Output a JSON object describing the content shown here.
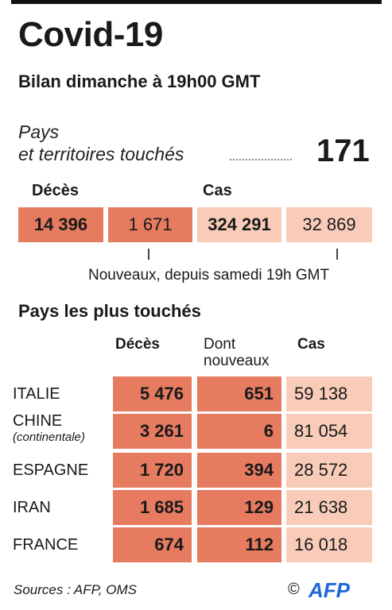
{
  "title": "Covid-19",
  "subtitle": "Bilan dimanche à 19h00 GMT",
  "countries_affected": {
    "label_line1": "Pays",
    "label_line2": "et territoires touchés",
    "value": "171"
  },
  "summary": {
    "deaths_label": "Décès",
    "cases_label": "Cas",
    "deaths_total": "14 396",
    "deaths_new": "1 671",
    "cases_total": "324 291",
    "cases_new": "32 869",
    "new_note": "Nouveaux, depuis samedi 19h GMT"
  },
  "most_affected": {
    "heading": "Pays les plus touchés",
    "columns": {
      "deaths": "Décès",
      "new_deaths_line1": "Dont",
      "new_deaths_line2": "nouveaux",
      "cases": "Cas"
    },
    "rows": [
      {
        "country": "ITALIE",
        "subtitle": "",
        "deaths": "5 476",
        "new_deaths": "651",
        "cases": "59 138"
      },
      {
        "country": "CHINE",
        "subtitle": "(continentale)",
        "deaths": "3 261",
        "new_deaths": "6",
        "cases": "81 054"
      },
      {
        "country": "ESPAGNE",
        "subtitle": "",
        "deaths": "1 720",
        "new_deaths": "394",
        "cases": "28 572"
      },
      {
        "country": "IRAN",
        "subtitle": "",
        "deaths": "1 685",
        "new_deaths": "129",
        "cases": "21 638"
      },
      {
        "country": "FRANCE",
        "subtitle": "",
        "deaths": "674",
        "new_deaths": "112",
        "cases": "16 018"
      }
    ]
  },
  "footer": {
    "sources": "Sources : AFP, OMS",
    "copyright": "©",
    "logo_text": "AFP"
  },
  "colors": {
    "deaths_fill": "#e67b60",
    "cases_fill": "#f8ccb9",
    "logo_blue": "#1e66d8"
  }
}
